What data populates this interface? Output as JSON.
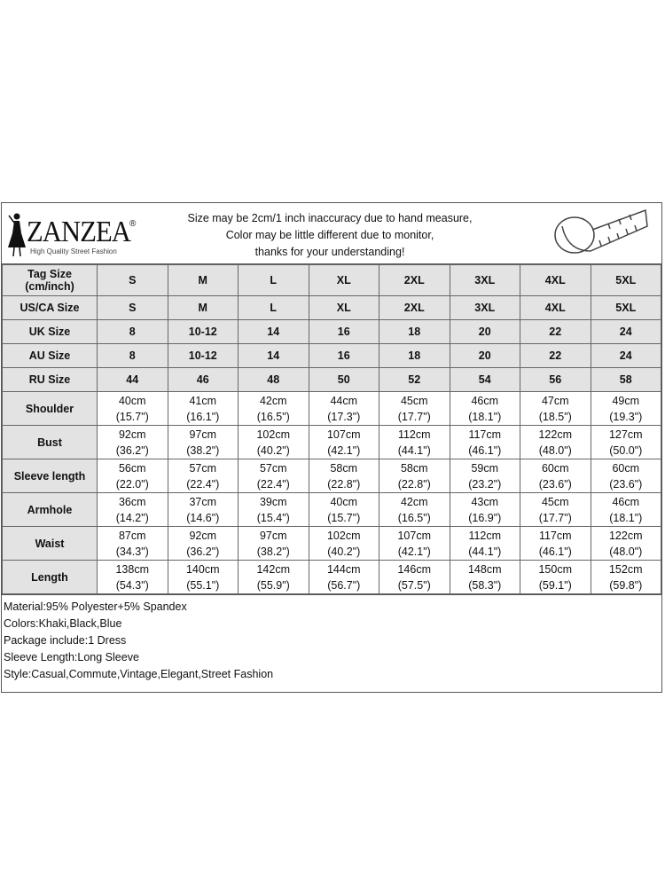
{
  "header": {
    "brand": "ZANZEA",
    "brand_mark": "®",
    "tagline": "High Quality Street Fashion",
    "notice": [
      "Size may be 2cm/1 inch inaccuracy due to hand measure,",
      "Color may be little different due to monitor,",
      "thanks for your understanding!"
    ],
    "icon": "measuring-tape-icon"
  },
  "size_rows": [
    {
      "label": "Tag Size (cm/inch)",
      "values": [
        "S",
        "M",
        "L",
        "XL",
        "2XL",
        "3XL",
        "4XL",
        "5XL"
      ]
    },
    {
      "label": "US/CA Size",
      "values": [
        "S",
        "M",
        "L",
        "XL",
        "2XL",
        "3XL",
        "4XL",
        "5XL"
      ]
    },
    {
      "label": "UK Size",
      "values": [
        "8",
        "10-12",
        "14",
        "16",
        "18",
        "20",
        "22",
        "24"
      ]
    },
    {
      "label": "AU Size",
      "values": [
        "8",
        "10-12",
        "14",
        "16",
        "18",
        "20",
        "22",
        "24"
      ]
    },
    {
      "label": "RU Size",
      "values": [
        "44",
        "46",
        "48",
        "50",
        "52",
        "54",
        "56",
        "58"
      ]
    }
  ],
  "measure_rows": [
    {
      "label": "Shoulder",
      "cm": [
        "40cm",
        "41cm",
        "42cm",
        "44cm",
        "45cm",
        "46cm",
        "47cm",
        "49cm"
      ],
      "inch": [
        "(15.7\")",
        "(16.1\")",
        "(16.5\")",
        "(17.3\")",
        "(17.7\")",
        "(18.1\")",
        "(18.5\")",
        "(19.3\")"
      ]
    },
    {
      "label": "Bust",
      "cm": [
        "92cm",
        "97cm",
        "102cm",
        "107cm",
        "112cm",
        "117cm",
        "122cm",
        "127cm"
      ],
      "inch": [
        "(36.2\")",
        "(38.2\")",
        "(40.2\")",
        "(42.1\")",
        "(44.1\")",
        "(46.1\")",
        "(48.0\")",
        "(50.0\")"
      ]
    },
    {
      "label": "Sleeve length",
      "cm": [
        "56cm",
        "57cm",
        "57cm",
        "58cm",
        "58cm",
        "59cm",
        "60cm",
        "60cm"
      ],
      "inch": [
        "(22.0\")",
        "(22.4\")",
        "(22.4\")",
        "(22.8\")",
        "(22.8\")",
        "(23.2\")",
        "(23.6\")",
        "(23.6\")"
      ]
    },
    {
      "label": "Armhole",
      "cm": [
        "36cm",
        "37cm",
        "39cm",
        "40cm",
        "42cm",
        "43cm",
        "45cm",
        "46cm"
      ],
      "inch": [
        "(14.2\")",
        "(14.6\")",
        "(15.4\")",
        "(15.7\")",
        "(16.5\")",
        "(16.9\")",
        "(17.7\")",
        "(18.1\")"
      ]
    },
    {
      "label": "Waist",
      "cm": [
        "87cm",
        "92cm",
        "97cm",
        "102cm",
        "107cm",
        "112cm",
        "117cm",
        "122cm"
      ],
      "inch": [
        "(34.3\")",
        "(36.2\")",
        "(38.2\")",
        "(40.2\")",
        "(42.1\")",
        "(44.1\")",
        "(46.1\")",
        "(48.0\")"
      ]
    },
    {
      "label": "Length",
      "cm": [
        "138cm",
        "140cm",
        "142cm",
        "144cm",
        "146cm",
        "148cm",
        "150cm",
        "152cm"
      ],
      "inch": [
        "(54.3\")",
        "(55.1\")",
        "(55.9\")",
        "(56.7\")",
        "(57.5\")",
        "(58.3\")",
        "(59.1\")",
        "(59.8\")"
      ]
    }
  ],
  "notes": [
    "Material:95% Polyester+5% Spandex",
    "Colors:Khaki,Black,Blue",
    "Package include:1 Dress",
    "Sleeve Length:Long Sleeve",
    "Style:Casual,Commute,Vintage,Elegant,Street Fashion"
  ]
}
